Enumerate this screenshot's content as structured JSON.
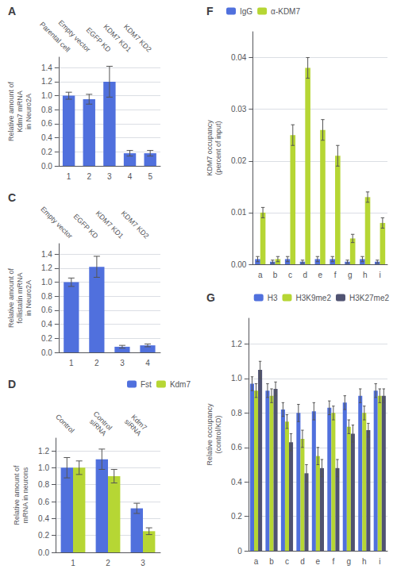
{
  "chart_data": [
    {
      "type": "bar",
      "title": "A",
      "ylabel": "Relative amount of\nKdm7 mRNA\nin Neuro2A",
      "categories": [
        "1",
        "2",
        "3",
        "4",
        "5"
      ],
      "annotations": [
        "Parental cell",
        "Empty vector",
        "EGFP KD",
        "KDM7 KD1",
        "KDM7 KD2"
      ],
      "values": [
        1.0,
        0.95,
        1.2,
        0.18,
        0.18
      ],
      "errors": [
        0.05,
        0.07,
        0.22,
        0.04,
        0.04
      ],
      "ylim": [
        0,
        1.55
      ],
      "yticks": [
        {
          "value": 0,
          "label": "0.0"
        },
        0.2,
        0.4,
        0.6,
        0.8,
        {
          "value": 1.0,
          "label": "1.0"
        },
        1.2,
        1.4
      ],
      "grid": true
    },
    {
      "type": "bar",
      "title": "C",
      "ylabel": "Relative amount of\nfollistatin mRNA\nin Neuro2A",
      "categories": [
        "1",
        "2",
        "3",
        "4"
      ],
      "annotations": [
        "Empty vector",
        "EGFP KD",
        "KDM7 KD1",
        "KDM7 KD2"
      ],
      "values": [
        1.0,
        1.22,
        0.08,
        0.1
      ],
      "errors": [
        0.06,
        0.15,
        0.02,
        0.02
      ],
      "ylim": [
        0,
        1.55
      ],
      "yticks": [
        {
          "value": 0,
          "label": "0.0"
        },
        0.2,
        0.4,
        0.6,
        0.8,
        {
          "value": 1.0,
          "label": "1.0"
        },
        1.2,
        1.4
      ],
      "grid": true
    },
    {
      "type": "bar",
      "title": "D",
      "ylabel": "Relative amount of\nmRNA in neurons",
      "categories": [
        "1",
        "2",
        "3"
      ],
      "annotations": [
        "Control",
        "Control\nsiRNA",
        "Kdm7\nsiRNA"
      ],
      "series": [
        {
          "name": "Fst",
          "values": [
            1.0,
            1.1,
            0.52
          ],
          "errors": [
            0.12,
            0.12,
            0.06
          ]
        },
        {
          "name": "Kdm7",
          "values": [
            1.0,
            0.9,
            0.25
          ],
          "errors": [
            0.08,
            0.08,
            0.04
          ]
        }
      ],
      "ylim": [
        0,
        1.35
      ],
      "yticks": [
        {
          "value": 0,
          "label": "0.0"
        },
        0.2,
        0.4,
        0.6,
        0.8,
        {
          "value": 1.0,
          "label": "1.0"
        },
        1.2
      ],
      "grid": true,
      "legend": "upper right"
    },
    {
      "type": "bar",
      "title": "F",
      "ylabel": "KDM7 occupancy\n(percent of input)",
      "categories": [
        "a",
        "b",
        "c",
        "d",
        "e",
        "f",
        "g",
        "h",
        "i"
      ],
      "series": [
        {
          "name": "IgG",
          "values": [
            0.001,
            0.0005,
            0.001,
            0.0005,
            0.001,
            0.001,
            0.0005,
            0.001,
            0.0005
          ],
          "errors": [
            0.0005,
            0.0003,
            0.0005,
            0.0003,
            0.0005,
            0.0005,
            0.0003,
            0.0005,
            0.0003
          ]
        },
        {
          "name": "α-KDM7",
          "values": [
            0.01,
            0.001,
            0.025,
            0.038,
            0.026,
            0.021,
            0.005,
            0.013,
            0.008
          ],
          "errors": [
            0.001,
            0.0005,
            0.002,
            0.002,
            0.002,
            0.002,
            0.0008,
            0.001,
            0.001
          ]
        }
      ],
      "ylim": [
        0,
        0.045
      ],
      "yticks": [
        {
          "value": 0,
          "label": "0.00"
        },
        0.01,
        0.02,
        0.03,
        0.04
      ],
      "grid": true,
      "legend": "upper left"
    },
    {
      "type": "bar",
      "title": "G",
      "ylabel": "Relative occupancy\n(control/KD)",
      "categories": [
        "a",
        "b",
        "c",
        "d",
        "e",
        "f",
        "g",
        "h",
        "i"
      ],
      "series": [
        {
          "name": "H3",
          "values": [
            0.97,
            0.93,
            0.82,
            0.8,
            0.81,
            0.83,
            0.86,
            0.9,
            0.93
          ],
          "errors": [
            0.04,
            0.04,
            0.04,
            0.05,
            0.05,
            0.04,
            0.04,
            0.04,
            0.04
          ]
        },
        {
          "name": "H3K9me2",
          "values": [
            0.93,
            0.9,
            0.75,
            0.65,
            0.55,
            0.8,
            0.72,
            0.8,
            0.9
          ],
          "errors": [
            0.04,
            0.04,
            0.04,
            0.05,
            0.05,
            0.04,
            0.04,
            0.04,
            0.04
          ]
        },
        {
          "name": "H3K27me2",
          "values": [
            1.05,
            0.94,
            0.63,
            0.45,
            0.48,
            0.48,
            0.68,
            0.7,
            0.9
          ],
          "errors": [
            0.05,
            0.04,
            0.05,
            0.05,
            0.05,
            0.05,
            0.05,
            0.04,
            0.04
          ]
        }
      ],
      "ylim": [
        0,
        1.35
      ],
      "yticks": [
        0,
        0.2,
        0.4,
        0.6,
        0.8,
        {
          "value": 1.0,
          "label": "1.0"
        },
        1.2
      ],
      "grid": true,
      "legend": "upper right"
    }
  ]
}
